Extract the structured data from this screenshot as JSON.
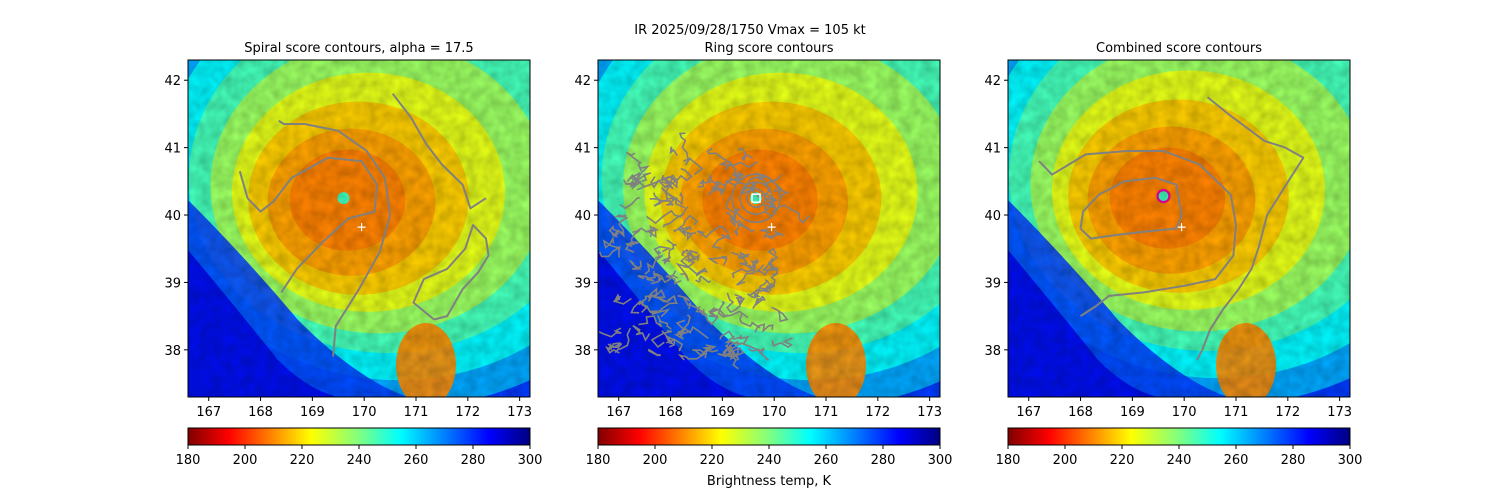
{
  "figure": {
    "suptitle": "IR  2025/09/28/1750    Vmax = 105 kt"
  },
  "chart_data": [
    {
      "type": "heatmap",
      "panel": "spiral",
      "title": "Spiral score contours, alpha = 17.5",
      "xlim": [
        166.6,
        173.2
      ],
      "ylim": [
        37.3,
        42.3
      ],
      "xticks": [
        167,
        168,
        169,
        170,
        171,
        172,
        173
      ],
      "yticks": [
        38,
        39,
        40,
        41,
        42
      ],
      "center": [
        169.6,
        40.25
      ],
      "best_track_marker": [
        169.95,
        39.82
      ],
      "contours": [
        [
          [
            168.4,
            38.85
          ],
          [
            168.7,
            39.2
          ],
          [
            169.2,
            39.6
          ],
          [
            169.7,
            39.95
          ],
          [
            170.2,
            40.05
          ],
          [
            170.25,
            40.45
          ],
          [
            169.95,
            40.8
          ],
          [
            169.3,
            40.85
          ],
          [
            168.6,
            40.55
          ],
          [
            168.25,
            40.2
          ],
          [
            168.0,
            40.05
          ],
          [
            167.75,
            40.25
          ],
          [
            167.6,
            40.65
          ]
        ],
        [
          [
            169.4,
            37.9
          ],
          [
            169.45,
            38.35
          ],
          [
            169.9,
            38.9
          ],
          [
            170.3,
            39.45
          ],
          [
            170.5,
            40.0
          ],
          [
            170.4,
            40.55
          ],
          [
            170.05,
            40.95
          ],
          [
            169.5,
            41.25
          ],
          [
            168.85,
            41.35
          ],
          [
            168.45,
            41.35
          ],
          [
            168.35,
            41.4
          ]
        ],
        [
          [
            170.55,
            41.8
          ],
          [
            170.9,
            41.45
          ],
          [
            171.2,
            41.05
          ],
          [
            171.5,
            40.75
          ],
          [
            171.9,
            40.45
          ],
          [
            172.05,
            40.1
          ],
          [
            172.35,
            40.25
          ]
        ],
        [
          [
            171.35,
            38.45
          ],
          [
            171.6,
            38.5
          ],
          [
            171.9,
            38.9
          ],
          [
            172.2,
            39.15
          ],
          [
            172.4,
            39.4
          ],
          [
            172.35,
            39.65
          ],
          [
            172.1,
            39.85
          ],
          [
            171.95,
            39.5
          ],
          [
            171.6,
            39.2
          ],
          [
            171.15,
            39.05
          ],
          [
            170.95,
            38.7
          ],
          [
            171.35,
            38.45
          ]
        ]
      ],
      "colorbar": {
        "ticks": [
          180,
          200,
          220,
          240,
          260,
          280,
          300
        ],
        "vmin": 180,
        "vmax": 300,
        "label": ""
      }
    },
    {
      "type": "heatmap",
      "panel": "ring",
      "title": "Ring score contours",
      "xlim": [
        166.6,
        173.2
      ],
      "ylim": [
        37.3,
        42.3
      ],
      "xticks": [
        167,
        168,
        169,
        170,
        171,
        172,
        173
      ],
      "yticks": [
        38,
        39,
        40,
        41,
        42
      ],
      "center": [
        169.65,
        40.25
      ],
      "best_track_marker": [
        169.95,
        39.82
      ],
      "colorbar": {
        "ticks": [
          180,
          200,
          220,
          240,
          260,
          280,
          300
        ],
        "vmin": 180,
        "vmax": 300,
        "label": "Brightness temp, K"
      }
    },
    {
      "type": "heatmap",
      "panel": "combined",
      "title": "Combined score contours",
      "xlim": [
        166.6,
        173.2
      ],
      "ylim": [
        37.3,
        42.3
      ],
      "xticks": [
        167,
        168,
        169,
        170,
        171,
        172,
        173
      ],
      "yticks": [
        38,
        39,
        40,
        41,
        42
      ],
      "center": [
        169.6,
        40.28
      ],
      "best_track_marker": [
        169.95,
        39.82
      ],
      "contours": [
        [
          [
            168.0,
            39.8
          ],
          [
            168.2,
            39.65
          ],
          [
            168.65,
            39.7
          ],
          [
            169.2,
            39.75
          ],
          [
            169.85,
            39.8
          ],
          [
            169.95,
            40.0
          ],
          [
            169.85,
            40.45
          ],
          [
            169.45,
            40.55
          ],
          [
            168.85,
            40.5
          ],
          [
            168.35,
            40.3
          ],
          [
            168.05,
            40.05
          ],
          [
            168.0,
            39.8
          ]
        ],
        [
          [
            167.2,
            40.8
          ],
          [
            167.45,
            40.6
          ],
          [
            168.1,
            40.9
          ],
          [
            168.9,
            40.95
          ],
          [
            169.6,
            40.95
          ],
          [
            170.3,
            40.75
          ],
          [
            170.9,
            40.3
          ],
          [
            171.0,
            39.85
          ],
          [
            170.95,
            39.4
          ],
          [
            170.6,
            39.05
          ],
          [
            170.0,
            38.95
          ],
          [
            169.2,
            38.85
          ],
          [
            168.55,
            38.8
          ],
          [
            168.3,
            38.65
          ],
          [
            168.0,
            38.5
          ]
        ],
        [
          [
            170.45,
            41.75
          ],
          [
            170.85,
            41.5
          ],
          [
            171.2,
            41.3
          ],
          [
            171.55,
            41.1
          ],
          [
            171.95,
            41.0
          ],
          [
            172.3,
            40.85
          ],
          [
            172.05,
            40.55
          ],
          [
            171.6,
            40.0
          ],
          [
            171.45,
            39.55
          ],
          [
            171.3,
            39.2
          ],
          [
            171.05,
            38.9
          ],
          [
            170.75,
            38.6
          ],
          [
            170.5,
            38.3
          ],
          [
            170.35,
            38.0
          ],
          [
            170.25,
            37.85
          ]
        ]
      ],
      "colorbar": {
        "ticks": [
          180,
          200,
          220,
          240,
          260,
          280,
          300
        ],
        "vmin": 180,
        "vmax": 300,
        "label": ""
      }
    }
  ]
}
